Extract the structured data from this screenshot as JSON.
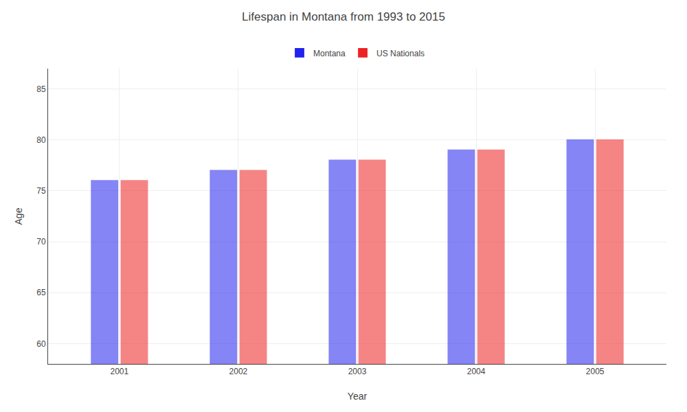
{
  "chart_data": {
    "type": "bar",
    "title": "Lifespan in Montana from 1993 to 2015",
    "x_label": "Year",
    "y_label": "Age",
    "categories": [
      "2001",
      "2002",
      "2003",
      "2004",
      "2005"
    ],
    "series": [
      {
        "name": "Montana",
        "color": "#2222ee",
        "values": [
          76,
          77,
          78,
          79,
          80
        ]
      },
      {
        "name": "US Nationals",
        "color": "#ee2222",
        "values": [
          76,
          77,
          78,
          79,
          80
        ]
      }
    ],
    "ylim": [
      58,
      87
    ],
    "yticks": [
      60,
      65,
      70,
      75,
      80,
      85
    ],
    "grid": true,
    "legend": "top"
  }
}
